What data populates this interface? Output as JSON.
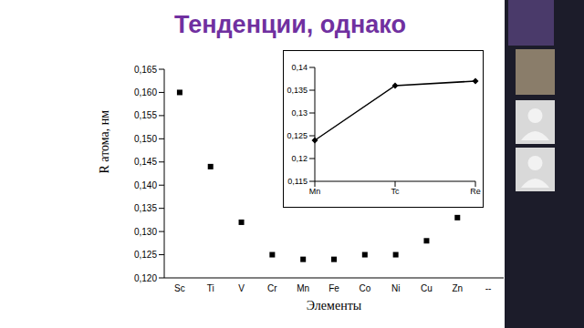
{
  "chart_data": [
    {
      "type": "scatter",
      "title": "Тенденции, однако",
      "x_label": "Элементы",
      "y_label": "R атома, нм",
      "categories": [
        "Sc",
        "Ti",
        "V",
        "Cr",
        "Mn",
        "Fe",
        "Co",
        "Ni",
        "Cu",
        "Zn",
        "--"
      ],
      "values": [
        0.16,
        0.144,
        0.132,
        0.125,
        0.124,
        0.124,
        0.125,
        0.125,
        0.128,
        0.133,
        null
      ],
      "color": "#000000",
      "marker": "square",
      "ylim": [
        0.12,
        0.165
      ],
      "yticks": [
        {
          "value": 0.12,
          "label": "0,120"
        },
        {
          "value": 0.125,
          "label": "0,125"
        },
        {
          "value": 0.13,
          "label": "0,130"
        },
        {
          "value": 0.135,
          "label": "0,135"
        },
        {
          "value": 0.14,
          "label": "0,140"
        },
        {
          "value": 0.145,
          "label": "0,145"
        },
        {
          "value": 0.15,
          "label": "0,150"
        },
        {
          "value": 0.155,
          "label": "0,155"
        },
        {
          "value": 0.16,
          "label": "0,160"
        },
        {
          "value": 0.165,
          "label": "0,165"
        }
      ]
    },
    {
      "type": "line",
      "categories": [
        "Mn",
        "Tc",
        "Re"
      ],
      "values": [
        0.124,
        0.136,
        0.137
      ],
      "color": "#000000",
      "marker": "diamond",
      "ylim": [
        0.115,
        0.14
      ],
      "yticks": [
        {
          "value": 0.115,
          "label": "0,115"
        },
        {
          "value": 0.12,
          "label": "0,12"
        },
        {
          "value": 0.125,
          "label": "0,125"
        },
        {
          "value": 0.13,
          "label": "0,13"
        },
        {
          "value": 0.135,
          "label": "0,135"
        },
        {
          "value": 0.14,
          "label": "0,14"
        }
      ]
    }
  ]
}
